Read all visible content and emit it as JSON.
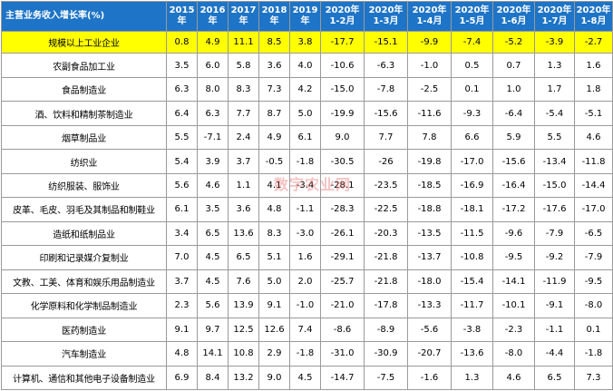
{
  "table": {
    "corner_label": "主营业务收入增长率(%)",
    "columns": [
      [
        "2015",
        "年"
      ],
      [
        "2016",
        "年"
      ],
      [
        "2017",
        "年"
      ],
      [
        "2018",
        "年"
      ],
      [
        "2019",
        "年"
      ],
      [
        "2020年",
        "1-2月"
      ],
      [
        "2020年",
        "1-3月"
      ],
      [
        "2020年",
        "1-4月"
      ],
      [
        "2020年",
        "1-5月"
      ],
      [
        "2020年",
        "1-6月"
      ],
      [
        "2020年",
        "1-7月"
      ],
      [
        "2020年",
        "1-8月"
      ]
    ],
    "rows": [
      {
        "name": "规模以上工业企业",
        "highlight": true,
        "values": [
          "0.8",
          "4.9",
          "11.1",
          "8.5",
          "3.8",
          "-17.7",
          "-15.1",
          "-9.9",
          "-7.4",
          "-5.2",
          "-3.9",
          "-2.7"
        ]
      },
      {
        "name": "农副食品加工业",
        "values": [
          "3.5",
          "6.0",
          "5.8",
          "3.6",
          "4.0",
          "-10.6",
          "-6.3",
          "-1.0",
          "0.5",
          "0.7",
          "1.3",
          "1.6"
        ]
      },
      {
        "name": "食品制造业",
        "values": [
          "6.3",
          "8.0",
          "8.3",
          "7.3",
          "4.2",
          "-15.0",
          "-7.8",
          "-2.5",
          "0.1",
          "1.0",
          "1.7",
          "1.8"
        ]
      },
      {
        "name": "酒、饮料和精制茶制造业",
        "values": [
          "6.4",
          "6.3",
          "7.7",
          "8.7",
          "5.0",
          "-19.9",
          "-15.6",
          "-11.6",
          "-9.3",
          "-6.4",
          "-5.4",
          "-5.1"
        ]
      },
      {
        "name": "烟草制品业",
        "values": [
          "5.5",
          "-7.1",
          "2.4",
          "4.9",
          "6.1",
          "9.0",
          "7.7",
          "7.8",
          "6.6",
          "5.9",
          "5.5",
          "4.6"
        ]
      },
      {
        "name": "纺织业",
        "values": [
          "5.4",
          "3.9",
          "3.7",
          "-0.5",
          "-1.8",
          "-30.5",
          "-26",
          "-19.8",
          "-17.0",
          "-15.6",
          "-13.4",
          "-11.8"
        ]
      },
      {
        "name": "纺织服装、服饰业",
        "values": [
          "5.6",
          "4.6",
          "1.1",
          "4.1",
          "-3.4",
          "-28.1",
          "-23.5",
          "-18.5",
          "-16.9",
          "-16.4",
          "-15.0",
          "-14.4"
        ]
      },
      {
        "name": "皮革、毛皮、羽毛及其制品和制鞋业",
        "values": [
          "6.1",
          "3.5",
          "3.6",
          "4.8",
          "-1.1",
          "-28.3",
          "-22.5",
          "-18.8",
          "-18.1",
          "-17.2",
          "-17.6",
          "-17.0"
        ]
      },
      {
        "name": "造纸和纸制品业",
        "values": [
          "3.4",
          "6.5",
          "13.6",
          "8.3",
          "-3.0",
          "-26.1",
          "-20.3",
          "-13.5",
          "-11.5",
          "-9.6",
          "-7.9",
          "-6.5"
        ]
      },
      {
        "name": "印刷和记录媒介复制业",
        "values": [
          "7.0",
          "4.5",
          "6.5",
          "5.1",
          "1.6",
          "-29.1",
          "-21.8",
          "-13.7",
          "-10.8",
          "-9.5",
          "-9.2",
          "-7.9"
        ]
      },
      {
        "name": "文教、工美、体育和娱乐用品制造业",
        "values": [
          "3.7",
          "4.5",
          "7.6",
          "5.0",
          "2.0",
          "-25.7",
          "-21.8",
          "-18.0",
          "-15.4",
          "-14.1",
          "-11.9",
          "-9.5"
        ]
      },
      {
        "name": "化学原料和化学制品制造业",
        "values": [
          "2.3",
          "5.6",
          "13.9",
          "9.1",
          "-1.0",
          "-21.0",
          "-17.8",
          "-13.3",
          "-11.7",
          "-10.1",
          "-9.1",
          "-8.0"
        ]
      },
      {
        "name": "医药制造业",
        "values": [
          "9.1",
          "9.7",
          "12.5",
          "12.6",
          "7.4",
          "-8.6",
          "-8.9",
          "-5.6",
          "-3.8",
          "-2.3",
          "-1.1",
          "0.1"
        ]
      },
      {
        "name": "汽车制造业",
        "values": [
          "4.8",
          "14.1",
          "10.8",
          "2.9",
          "-1.8",
          "-31.0",
          "-30.9",
          "-20.7",
          "-13.6",
          "-8.0",
          "-4.4",
          "-1.8"
        ]
      },
      {
        "name": "计算机、通信和其他电子设备制造业",
        "values": [
          "6.9",
          "8.4",
          "13.2",
          "9.0",
          "4.5",
          "-14.7",
          "-7.5",
          "-1.6",
          "1.3",
          "4.6",
          "6.5",
          "7.3"
        ]
      }
    ]
  },
  "watermark": "数字农业网"
}
